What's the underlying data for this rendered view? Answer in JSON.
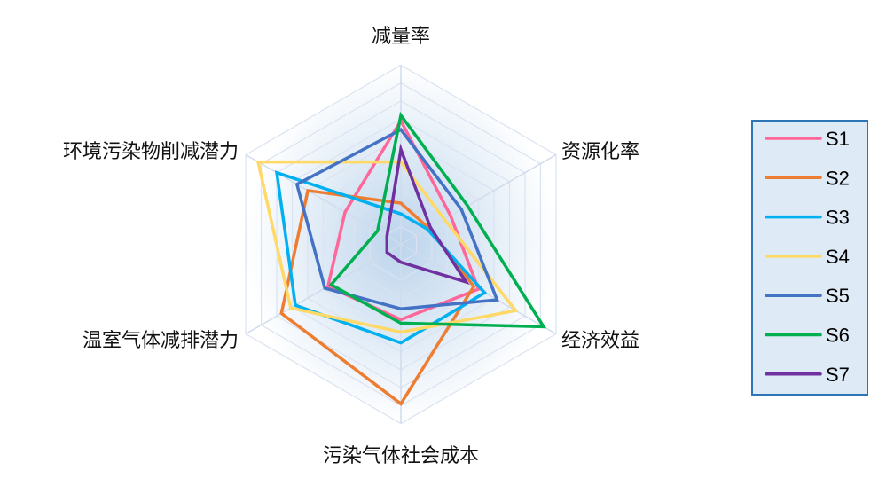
{
  "chart_data": {
    "type": "radar",
    "axes": [
      "减量率",
      "资源化率",
      "经济效益",
      "污染气体社会成本",
      "温室气体减排潜力",
      "环境污染物削减潜力"
    ],
    "range": [
      0,
      1
    ],
    "grid": true,
    "legend_position": "right",
    "series": [
      {
        "name": "S1",
        "color": "#ff6699",
        "values": [
          0.69,
          0.32,
          0.5,
          0.42,
          0.47,
          0.36
        ]
      },
      {
        "name": "S2",
        "color": "#ed7d31",
        "values": [
          0.23,
          0.18,
          0.47,
          0.89,
          0.77,
          0.6
        ]
      },
      {
        "name": "S3",
        "color": "#00b0f0",
        "values": [
          0.17,
          0.17,
          0.54,
          0.55,
          0.68,
          0.8
        ]
      },
      {
        "name": "S4",
        "color": "#ffd966",
        "values": [
          0.46,
          0.28,
          0.74,
          0.49,
          0.71,
          0.92
        ]
      },
      {
        "name": "S5",
        "color": "#4472c4",
        "values": [
          0.64,
          0.39,
          0.62,
          0.36,
          0.49,
          0.67
        ]
      },
      {
        "name": "S6",
        "color": "#00b050",
        "values": [
          0.72,
          0.43,
          0.92,
          0.44,
          0.45,
          0.15
        ]
      },
      {
        "name": "S7",
        "color": "#7030a0",
        "values": [
          0.53,
          0.19,
          0.42,
          0.1,
          0.09,
          0.09
        ]
      }
    ]
  }
}
